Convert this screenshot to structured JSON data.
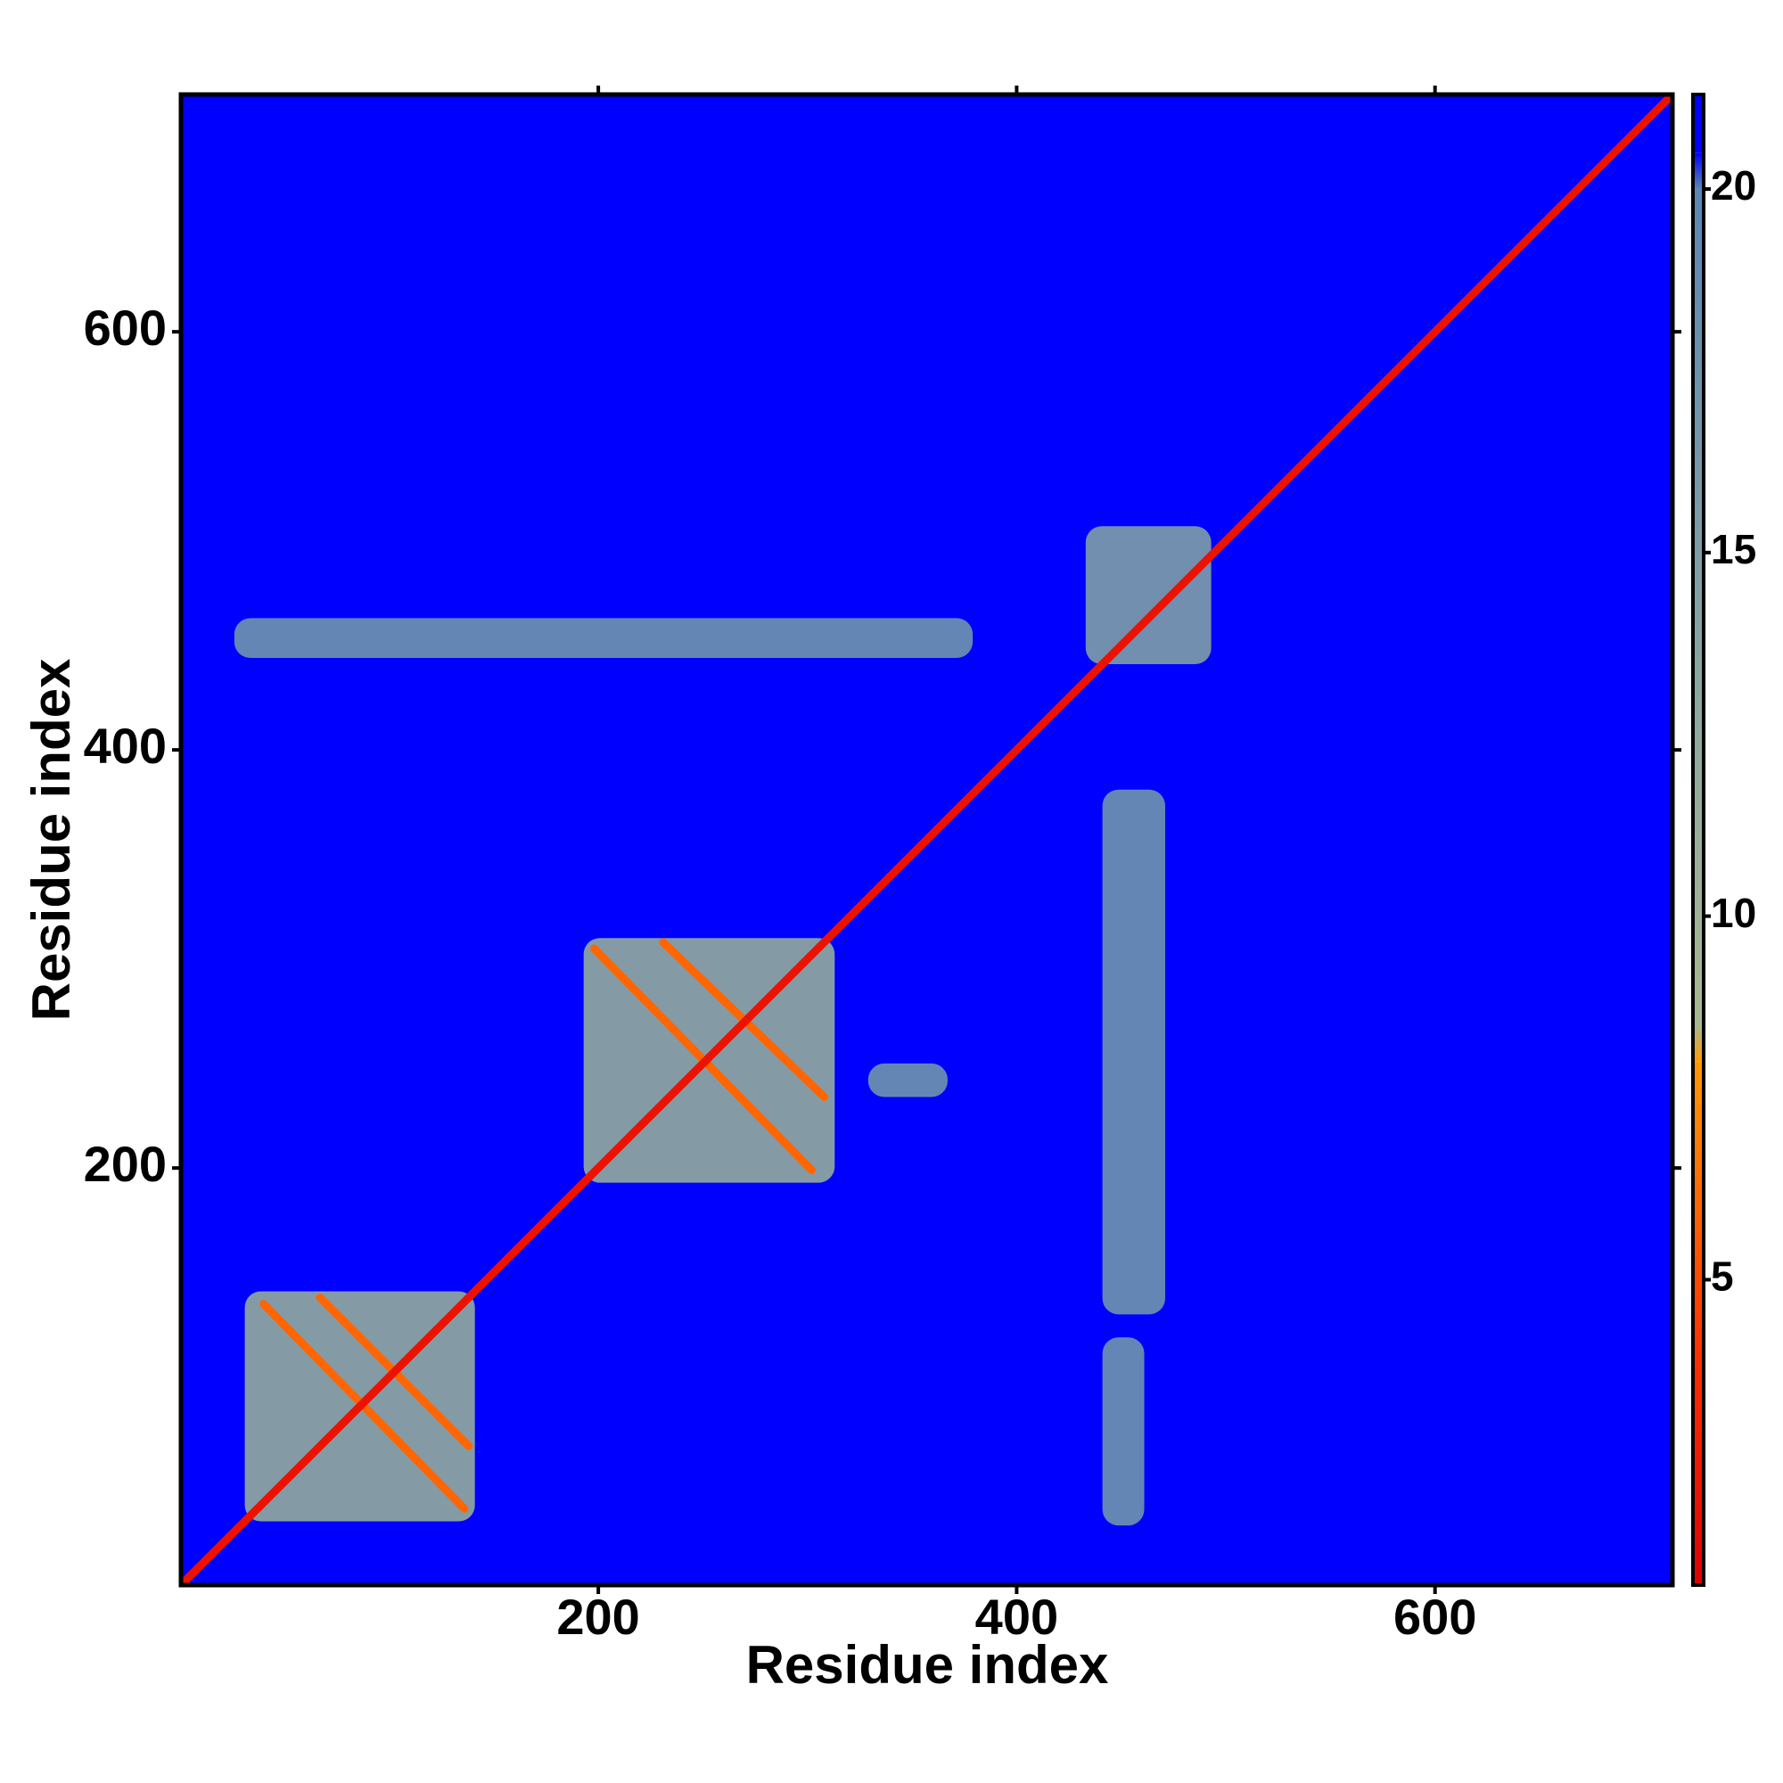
{
  "chart_data": {
    "type": "heatmap",
    "xlabel": "Residue index",
    "ylabel": "Residue index",
    "xlim": [
      0.5,
      713.5
    ],
    "ylim": [
      0.5,
      713.5
    ],
    "xticks": [
      200,
      400,
      600
    ],
    "yticks": [
      200,
      400,
      600
    ],
    "zlim": [
      0.8,
      21.3
    ],
    "zticks": [
      5,
      10,
      15,
      20
    ],
    "colorscale": [
      [
        0.8,
        "#e00000"
      ],
      [
        4,
        "#ff3000"
      ],
      [
        8,
        "#ff9900"
      ],
      [
        8.5,
        "#a8b890"
      ],
      [
        13,
        "#8ca8a0"
      ],
      [
        20,
        "#5a87b5"
      ],
      [
        20.5,
        "#0000ff"
      ],
      [
        21.3,
        "#0000ff"
      ]
    ],
    "background": 21,
    "regions": [
      {
        "x": [
          31,
          141
        ],
        "y": [
          31,
          141
        ],
        "value": 12
      },
      {
        "x": [
          193,
          313
        ],
        "y": [
          193,
          310
        ],
        "value": 12
      },
      {
        "x": [
          26,
          379
        ],
        "y": [
          444,
          463
        ],
        "value": 17
      },
      {
        "x": [
          441,
          471
        ],
        "y": [
          130,
          381
        ],
        "value": 17
      },
      {
        "x": [
          441,
          461
        ],
        "y": [
          29,
          119
        ],
        "value": 17
      },
      {
        "x": [
          329,
          367
        ],
        "y": [
          234,
          250
        ],
        "value": 17
      },
      {
        "x": [
          433,
          493
        ],
        "y": [
          441,
          507
        ],
        "value": 15
      }
    ],
    "bands": [
      {
        "x": [
          40,
          136
        ],
        "y": [
          135,
          37
        ],
        "value": 6
      },
      {
        "x": [
          67,
          138
        ],
        "y": [
          138,
          67
        ],
        "value": 6
      },
      {
        "x": [
          198,
          302
        ],
        "y": [
          305,
          199
        ],
        "value": 6
      },
      {
        "x": [
          231,
          308
        ],
        "y": [
          308,
          234
        ],
        "value": 6
      },
      {
        "x": [
          1,
          713
        ],
        "y": [
          1,
          713
        ],
        "value": 2
      }
    ]
  }
}
